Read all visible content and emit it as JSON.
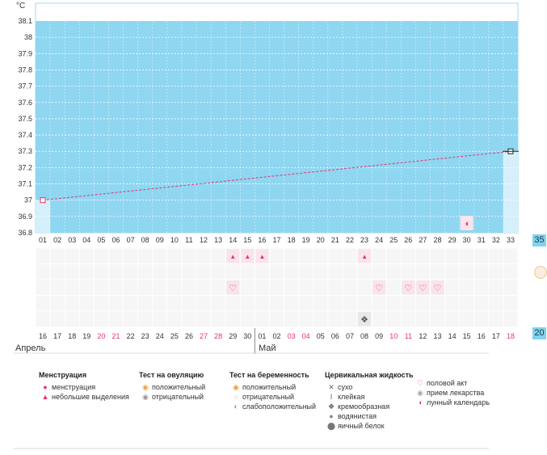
{
  "chart_data": {
    "type": "line",
    "ylabel": "°C",
    "ylim": [
      36.8,
      38.1
    ],
    "yticks": [
      "38.1",
      "38",
      "37.9",
      "37.8",
      "37.7",
      "37.6",
      "37.5",
      "37.4",
      "37.3",
      "37.2",
      "37.1",
      "37",
      "36.9",
      "36.8"
    ],
    "cycle_days": [
      "01",
      "02",
      "03",
      "04",
      "05",
      "06",
      "07",
      "08",
      "09",
      "10",
      "11",
      "12",
      "13",
      "14",
      "15",
      "16",
      "17",
      "18",
      "19",
      "20",
      "21",
      "22",
      "23",
      "24",
      "25",
      "26",
      "27",
      "28",
      "29",
      "30",
      "31",
      "32",
      "33"
    ],
    "dates": [
      "16",
      "17",
      "18",
      "19",
      "20",
      "21",
      "22",
      "23",
      "24",
      "25",
      "26",
      "27",
      "28",
      "29",
      "30",
      "01",
      "02",
      "03",
      "04",
      "05",
      "06",
      "07",
      "08",
      "09",
      "10",
      "11",
      "12",
      "13",
      "14",
      "15",
      "16",
      "17",
      "18"
    ],
    "red_dates": [
      4,
      5,
      11,
      12,
      17,
      18,
      24,
      25,
      32
    ],
    "months": [
      {
        "label": "Апрель",
        "start_index": 0
      },
      {
        "label": "Май",
        "start_index": 15
      }
    ],
    "series": [
      {
        "values": [
          {
            "day": "01",
            "temp": 37.0
          },
          {
            "day": "33",
            "temp": 37.3
          }
        ]
      }
    ],
    "grid": true,
    "markers": {
      "menstruation_light": [
        "14",
        "15",
        "16",
        "23"
      ],
      "sexual_act": [
        "14",
        "24",
        "26",
        "27",
        "28"
      ],
      "cervical_creamy": [
        "23"
      ],
      "moon": [
        "30"
      ]
    }
  },
  "side": {
    "top_value": "35",
    "bottom_value": "20"
  },
  "legend": {
    "menstruation": {
      "title": "Менструация",
      "items": [
        "менструация",
        "небольшие выделения"
      ]
    },
    "ovulation_test": {
      "title": "Тест на овуляцию",
      "items": [
        "положительный",
        "отрицательный"
      ]
    },
    "pregnancy_test": {
      "title": "Тест на беременность",
      "items": [
        "положительный",
        "отрицательный",
        "слабоположительный"
      ]
    },
    "cervical_fluid": {
      "title": "Цервикальная жидкость",
      "items": [
        "сухо",
        "клейкая",
        "кремообразная",
        "водянистая",
        "яичный белок"
      ]
    },
    "other": {
      "items": [
        "половой акт",
        "прием лекарства",
        "лунный календарь"
      ]
    }
  }
}
